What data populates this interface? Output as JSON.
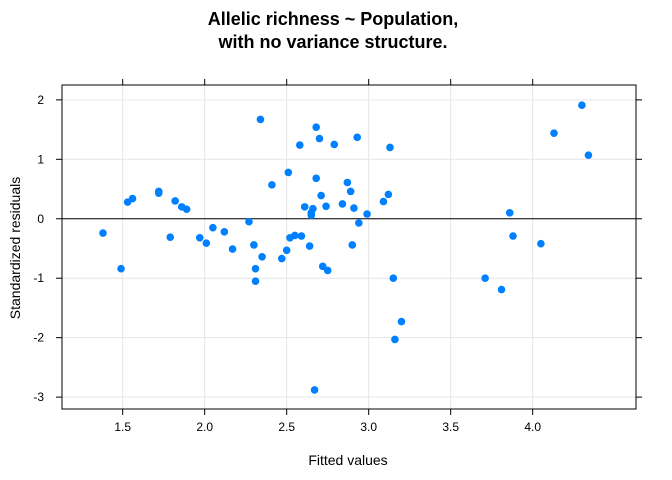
{
  "chart_data": {
    "type": "scatter",
    "title_lines": [
      "Allelic richness ~ Population,",
      "with no variance structure."
    ],
    "xlabel": "Fitted values",
    "ylabel": "Standardized residuals",
    "xlim": [
      1.13,
      4.63
    ],
    "ylim": [
      -3.2,
      2.25
    ],
    "x_ticks": [
      1.5,
      2.0,
      2.5,
      3.0,
      3.5,
      4.0
    ],
    "x_tick_labels": [
      "1.5",
      "2.0",
      "2.5",
      "3.0",
      "3.5",
      "4.0"
    ],
    "y_ticks": [
      -3,
      -2,
      -1,
      0,
      1,
      2
    ],
    "y_tick_labels": [
      "-3",
      "-2",
      "-1",
      "0",
      "1",
      "2"
    ],
    "reference_line_y": 0,
    "grid": true,
    "point_color": "#0080ff",
    "points": [
      {
        "x": 1.38,
        "y": -0.24
      },
      {
        "x": 1.49,
        "y": -0.84
      },
      {
        "x": 1.53,
        "y": 0.28
      },
      {
        "x": 1.56,
        "y": 0.34
      },
      {
        "x": 1.72,
        "y": 0.46
      },
      {
        "x": 1.72,
        "y": 0.43
      },
      {
        "x": 1.79,
        "y": -0.31
      },
      {
        "x": 1.82,
        "y": 0.3
      },
      {
        "x": 1.86,
        "y": 0.2
      },
      {
        "x": 1.89,
        "y": 0.16
      },
      {
        "x": 1.97,
        "y": -0.32
      },
      {
        "x": 2.01,
        "y": -0.41
      },
      {
        "x": 2.05,
        "y": -0.15
      },
      {
        "x": 2.12,
        "y": -0.22
      },
      {
        "x": 2.17,
        "y": -0.51
      },
      {
        "x": 2.27,
        "y": -0.05
      },
      {
        "x": 2.3,
        "y": -0.44
      },
      {
        "x": 2.31,
        "y": -0.84
      },
      {
        "x": 2.31,
        "y": -1.05
      },
      {
        "x": 2.34,
        "y": 1.67
      },
      {
        "x": 2.35,
        "y": -0.64
      },
      {
        "x": 2.41,
        "y": 0.57
      },
      {
        "x": 2.47,
        "y": -0.67
      },
      {
        "x": 2.5,
        "y": -0.53
      },
      {
        "x": 2.51,
        "y": 0.78
      },
      {
        "x": 2.52,
        "y": -0.32
      },
      {
        "x": 2.55,
        "y": -0.28
      },
      {
        "x": 2.58,
        "y": 1.24
      },
      {
        "x": 2.59,
        "y": -0.29
      },
      {
        "x": 2.61,
        "y": 0.2
      },
      {
        "x": 2.64,
        "y": -0.46
      },
      {
        "x": 2.65,
        "y": 0.06
      },
      {
        "x": 2.65,
        "y": 0.1
      },
      {
        "x": 2.66,
        "y": 0.17
      },
      {
        "x": 2.67,
        "y": -2.88
      },
      {
        "x": 2.68,
        "y": 0.68
      },
      {
        "x": 2.68,
        "y": 1.54
      },
      {
        "x": 2.7,
        "y": 1.35
      },
      {
        "x": 2.71,
        "y": 0.39
      },
      {
        "x": 2.72,
        "y": -0.8
      },
      {
        "x": 2.74,
        "y": 0.21
      },
      {
        "x": 2.75,
        "y": -0.87
      },
      {
        "x": 2.79,
        "y": 1.25
      },
      {
        "x": 2.84,
        "y": 0.25
      },
      {
        "x": 2.87,
        "y": 0.61
      },
      {
        "x": 2.89,
        "y": 0.46
      },
      {
        "x": 2.9,
        "y": -0.44
      },
      {
        "x": 2.91,
        "y": 0.18
      },
      {
        "x": 2.93,
        "y": 1.37
      },
      {
        "x": 2.94,
        "y": -0.07
      },
      {
        "x": 2.99,
        "y": 0.08
      },
      {
        "x": 3.09,
        "y": 0.29
      },
      {
        "x": 3.12,
        "y": 0.41
      },
      {
        "x": 3.13,
        "y": 1.2
      },
      {
        "x": 3.15,
        "y": -1.0
      },
      {
        "x": 3.16,
        "y": -2.03
      },
      {
        "x": 3.2,
        "y": -1.73
      },
      {
        "x": 3.71,
        "y": -1.0
      },
      {
        "x": 3.81,
        "y": -1.19
      },
      {
        "x": 3.86,
        "y": 0.1
      },
      {
        "x": 3.88,
        "y": -0.29
      },
      {
        "x": 4.05,
        "y": -0.42
      },
      {
        "x": 4.13,
        "y": 1.44
      },
      {
        "x": 4.3,
        "y": 1.91
      },
      {
        "x": 4.34,
        "y": 1.07
      }
    ]
  }
}
